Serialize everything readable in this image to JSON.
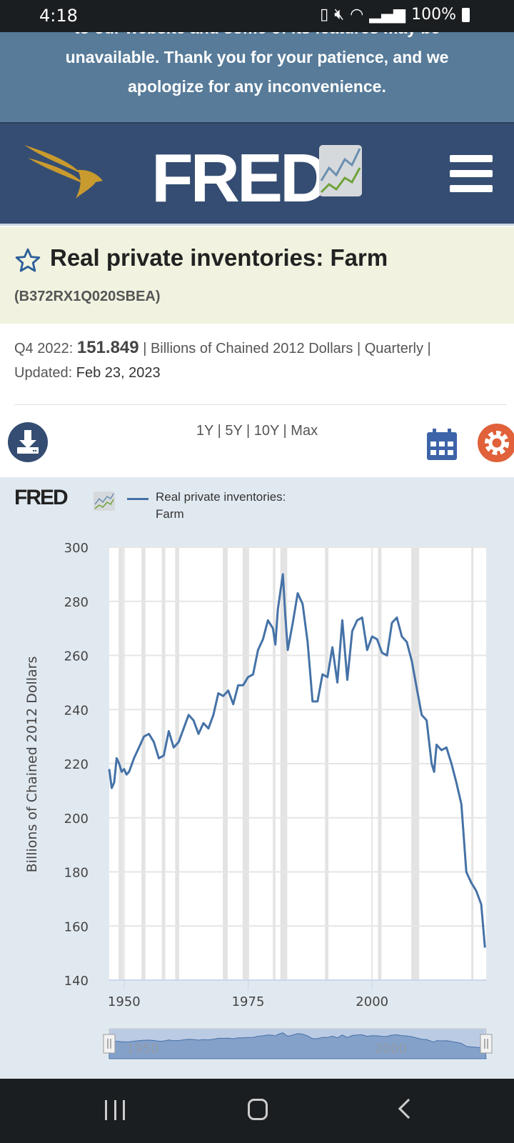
{
  "status_bar": {
    "time": "4:18",
    "battery": "100%",
    "icons": [
      "battery-saver-icon",
      "mute-icon",
      "wifi-icon",
      "signal-icon",
      "battery-icon"
    ]
  },
  "banner": {
    "text": "to our website and some of its features may be unavailable. Thank you for your patience, and we apologize for any inconvenience."
  },
  "header": {
    "logo_text": "FRED",
    "menu_icon": "hamburger-icon",
    "brand_color": "#354d72"
  },
  "series": {
    "title": "Real private inventories: Farm",
    "id": "(B372RX1Q020SBEA)"
  },
  "info": {
    "period": "Q4 2022:",
    "value": "151.849",
    "units": "| Billions of Chained 2012 Dollars | Quarterly |",
    "updated_label": "Updated:",
    "updated": "Feb 23, 2023"
  },
  "toolbar": {
    "ranges": [
      "1Y",
      "5Y",
      "10Y",
      "Max"
    ],
    "download_icon": "download-icon",
    "calendar_icon": "calendar-icon",
    "settings_icon": "gear-icon"
  },
  "chart_data": {
    "type": "line",
    "logo_text": "FRED",
    "legend": [
      "Real private inventories:",
      "Farm"
    ],
    "ylabel": "Billions of Chained 2012 Dollars",
    "xlabel": "",
    "ylim": [
      140,
      300
    ],
    "xlim": [
      1947,
      2023
    ],
    "yticks": [
      "300",
      "280",
      "260",
      "240",
      "220",
      "200",
      "180",
      "160",
      "140"
    ],
    "xticks": [
      "1950",
      "1975",
      "2000"
    ],
    "grid": true,
    "line_color": "#4572a7",
    "recessions": [
      [
        1948.9,
        1949.8
      ],
      [
        1953.5,
        1954.3
      ],
      [
        1957.6,
        1958.3
      ],
      [
        1960.3,
        1961.1
      ],
      [
        1969.9,
        1970.9
      ],
      [
        1973.9,
        1975.2
      ],
      [
        1980.0,
        1980.5
      ],
      [
        1981.5,
        1982.9
      ],
      [
        1990.5,
        1991.2
      ],
      [
        2001.2,
        2001.9
      ],
      [
        2007.9,
        2009.5
      ],
      [
        2020.0,
        2020.3
      ]
    ],
    "x": [
      1947,
      1947.5,
      1948,
      1948.5,
      1949,
      1949.5,
      1950,
      1950.5,
      1951,
      1952,
      1953,
      1954,
      1955,
      1956,
      1957,
      1958,
      1959,
      1960,
      1961,
      1962,
      1963,
      1964,
      1965,
      1966,
      1967,
      1968,
      1969,
      1970,
      1971,
      1972,
      1973,
      1974,
      1975,
      1976,
      1977,
      1978,
      1979,
      1980,
      1980.5,
      1981,
      1982,
      1982.5,
      1983,
      1984,
      1985,
      1986,
      1987,
      1988,
      1989,
      1990,
      1991,
      1992,
      1993,
      1994,
      1995,
      1996,
      1997,
      1998,
      1999,
      2000,
      2001,
      2002,
      2003,
      2004,
      2005,
      2006,
      2007,
      2008,
      2009,
      2010,
      2011,
      2012,
      2012.5,
      2013,
      2014,
      2015,
      2016,
      2017,
      2018,
      2019,
      2020,
      2021,
      2022,
      2022.75
    ],
    "values": [
      218,
      211,
      213,
      222,
      220,
      217,
      218,
      216,
      217,
      222,
      226,
      230,
      231,
      228,
      222,
      223,
      232,
      226,
      228,
      233,
      238,
      236,
      231,
      235,
      233,
      238,
      246,
      245,
      247,
      242,
      249,
      249,
      252,
      253,
      262,
      266,
      273,
      270,
      264,
      277,
      290,
      275,
      262,
      272,
      283,
      279,
      265,
      243,
      243,
      253,
      252,
      263,
      250,
      273,
      251,
      269,
      273,
      274,
      262,
      267,
      266,
      261,
      260,
      272,
      274,
      267,
      265,
      258,
      248,
      238,
      236,
      220,
      217,
      227,
      225,
      226,
      220,
      213,
      205,
      180,
      176,
      173,
      168,
      152
    ]
  },
  "navigator": {
    "labels": [
      "1950",
      "2000"
    ]
  },
  "nav_bar": {
    "icons": [
      "recent-apps-icon",
      "home-icon",
      "back-icon"
    ]
  }
}
